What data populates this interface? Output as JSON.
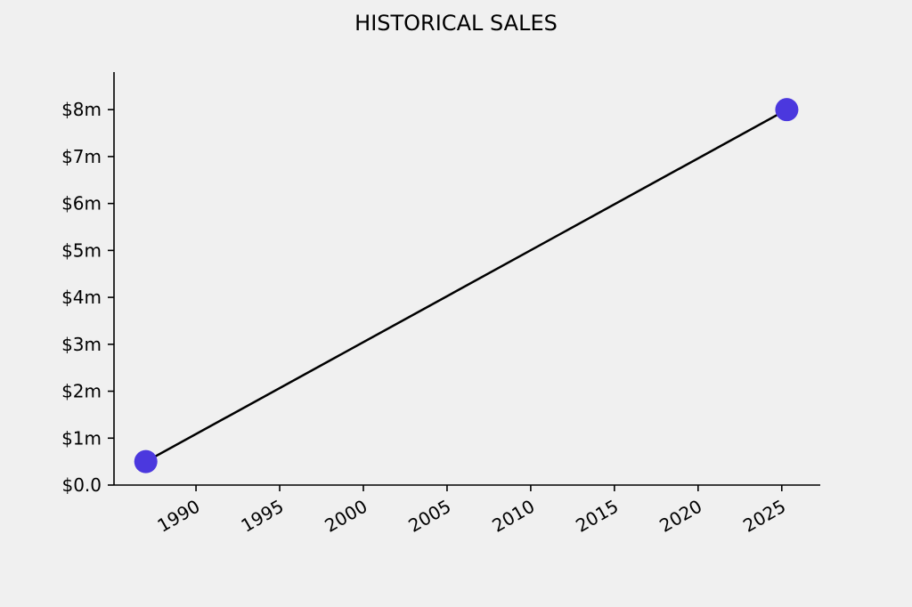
{
  "chart_data": {
    "type": "line",
    "title": "HISTORICAL SALES",
    "x": [
      1987,
      2025.3
    ],
    "series": [
      {
        "values": [
          500000,
          8000000
        ],
        "color": "#000000",
        "marker_color": "#4b38de"
      }
    ],
    "xlim": [
      1985.1,
      2027.3
    ],
    "xticks": [
      1990,
      1995,
      2000,
      2005,
      2010,
      2015,
      2020,
      2025
    ],
    "ylim": [
      0,
      8800000
    ],
    "yticks": [
      {
        "value": 0,
        "label": "$0.0"
      },
      {
        "value": 1000000,
        "label": "$1m"
      },
      {
        "value": 2000000,
        "label": "$2m"
      },
      {
        "value": 3000000,
        "label": "$3m"
      },
      {
        "value": 4000000,
        "label": "$4m"
      },
      {
        "value": 5000000,
        "label": "$5m"
      },
      {
        "value": 6000000,
        "label": "$6m"
      },
      {
        "value": 7000000,
        "label": "$7m"
      },
      {
        "value": 8000000,
        "label": "$8m"
      }
    ],
    "grid": false
  }
}
